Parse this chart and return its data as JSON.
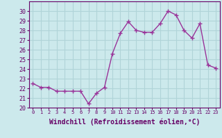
{
  "x": [
    0,
    1,
    2,
    3,
    4,
    5,
    6,
    7,
    8,
    9,
    10,
    11,
    12,
    13,
    14,
    15,
    16,
    17,
    18,
    19,
    20,
    21,
    22,
    23
  ],
  "y": [
    22.5,
    22.1,
    22.1,
    21.7,
    21.7,
    21.7,
    21.7,
    20.4,
    21.5,
    22.1,
    25.6,
    27.7,
    28.9,
    28.0,
    27.8,
    27.8,
    28.7,
    30.0,
    29.6,
    28.0,
    27.2,
    28.7,
    24.4,
    24.1
  ],
  "line_color": "#993399",
  "marker": "+",
  "marker_size": 4,
  "linewidth": 1.0,
  "xlabel": "Windchill (Refroidissement éolien,°C)",
  "xlabel_fontsize": 7,
  "ylim": [
    20,
    31
  ],
  "xlim": [
    -0.5,
    23.5
  ],
  "yticks": [
    20,
    21,
    22,
    23,
    24,
    25,
    26,
    27,
    28,
    29,
    30
  ],
  "xticks": [
    0,
    1,
    2,
    3,
    4,
    5,
    6,
    7,
    8,
    9,
    10,
    11,
    12,
    13,
    14,
    15,
    16,
    17,
    18,
    19,
    20,
    21,
    22,
    23
  ],
  "xtick_labels": [
    "0",
    "1",
    "2",
    "3",
    "4",
    "5",
    "6",
    "7",
    "8",
    "9",
    "10",
    "11",
    "12",
    "13",
    "14",
    "15",
    "16",
    "17",
    "18",
    "19",
    "20",
    "21",
    "22",
    "23"
  ],
  "background_color": "#cce9ec",
  "grid_color": "#b0d4d8",
  "tick_color": "#660066",
  "label_color": "#660066",
  "spine_color": "#660066",
  "ytick_fontsize": 6,
  "xtick_fontsize": 5
}
